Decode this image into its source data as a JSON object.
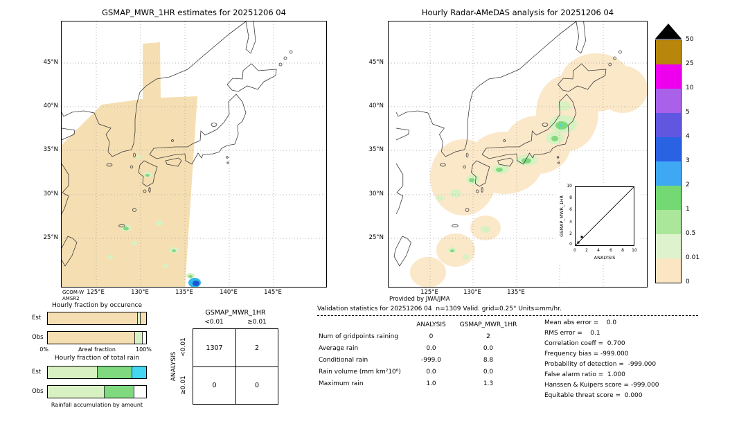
{
  "left_map": {
    "title": "GSMAP_MWR_1HR estimates for 20251206 04",
    "lat_ticks": [
      "45°N",
      "40°N",
      "35°N",
      "30°N",
      "25°N"
    ],
    "lon_ticks": [
      "125°E",
      "130°E",
      "135°E",
      "140°E",
      "145°E"
    ],
    "footnote_line1": "GCOM-W",
    "footnote_line2": "AMSR2"
  },
  "right_map": {
    "title": "Hourly Radar-AMeDAS analysis for 20251206 04",
    "lat_ticks": [
      "45°N",
      "40°N",
      "35°N",
      "30°N",
      "25°N"
    ],
    "lon_ticks": [
      "125°E",
      "130°E",
      "135°E"
    ],
    "footnote": "Provided by JWA/JMA",
    "inset": {
      "ylabel": "GSMAP_MWR_1HR",
      "xlabel": "ANALYSIS",
      "y_ticks": [
        "10",
        "8",
        "6",
        "4",
        "2",
        "0"
      ],
      "x_ticks": [
        "0",
        "2",
        "4",
        "6",
        "8",
        "10"
      ]
    }
  },
  "colorbar": {
    "labels": [
      "50",
      "25",
      "10",
      "5",
      "4",
      "3",
      "2",
      "1",
      "0.5",
      "0.01",
      "0"
    ],
    "colors_top_to_bottom": [
      "#b8860b",
      "#ee00ee",
      "#a861e8",
      "#6156e0",
      "#2a62e4",
      "#3fa8f5",
      "#74d973",
      "#abe69b",
      "#def3cd",
      "#fbe5c2"
    ]
  },
  "fraction_charts": {
    "occurrence": {
      "title": "Hourly fraction by occurence",
      "xlabel": "Areal fraction",
      "x_min_label": "0%",
      "x_max_label": "100%",
      "rows": [
        {
          "label": "Est",
          "segments": [
            [
              "tan",
              0,
              91
            ],
            [
              "palegreen",
              91,
              94
            ],
            [
              "tan",
              94,
              100
            ]
          ]
        },
        {
          "label": "Obs",
          "segments": [
            [
              "tan",
              0,
              88
            ],
            [
              "palegreen",
              88,
              96
            ],
            [
              "white",
              96,
              100
            ]
          ]
        }
      ]
    },
    "total_rain": {
      "title": "Hourly fraction of total rain",
      "caption": "Rainfall accumulation by amount",
      "rows": [
        {
          "label": "Est",
          "segments": [
            [
              "palegreen",
              0,
              50
            ],
            [
              "green",
              50,
              85
            ],
            [
              "cyan",
              85,
              100
            ]
          ]
        },
        {
          "label": "Obs",
          "segments": [
            [
              "palegreen",
              0,
              57
            ],
            [
              "green",
              57,
              87
            ],
            [
              "white",
              87,
              100
            ]
          ]
        }
      ]
    }
  },
  "contingency": {
    "title": "GSMAP_MWR_1HR",
    "col_labels": [
      "<0.01",
      "≥0.01"
    ],
    "row_axis_label": "ANALYSIS",
    "row_labels": [
      "<0.01",
      "≥0.01"
    ],
    "values": [
      [
        "1307",
        "2"
      ],
      [
        "0",
        "0"
      ]
    ]
  },
  "stats": {
    "header": "Validation statistics for 20251206 04  n=1309 Valid. grid=0.25° Units=mm/hr.",
    "col_headers": [
      "ANALYSIS",
      "GSMAP_MWR_1HR"
    ],
    "rows": [
      {
        "label": "Num of gridpoints raining",
        "analysis": "0",
        "gsmap": "2"
      },
      {
        "label": "Average rain",
        "analysis": "0.0",
        "gsmap": "0.0"
      },
      {
        "label": "Conditional rain",
        "analysis": "-999.0",
        "gsmap": "8.8"
      },
      {
        "label": "Rain volume (mm km²10⁶)",
        "analysis": "0.0",
        "gsmap": "0.0"
      },
      {
        "label": "Maximum rain",
        "analysis": "1.0",
        "gsmap": "1.3"
      }
    ],
    "metrics": [
      "Mean abs error =    0.0",
      "RMS error =    0.1",
      "Correlation coeff =  0.700",
      "Frequency bias = -999.000",
      "Probability of detection =  -999.000",
      "False alarm ratio =  1.000",
      "Hanssen & Kuipers score = -999.000",
      "Equitable threat score =  0.000"
    ]
  },
  "palette": {
    "tan": "#f5dfb2",
    "palegreen": "#d8f1c2",
    "green": "#7fd97f",
    "cyan": "#45d6f2",
    "white": "#ffffff",
    "peach": "#fbe8c9",
    "swath_tan": "#f5dfb2",
    "magenta": "#ee00ee",
    "brown": "#b8860b",
    "blue_spot": "#1a55d2",
    "cyan_spot": "#2fb9ea"
  },
  "chart_data": [
    {
      "type": "heatmap",
      "subtype": "precipitation-map",
      "title": "GSMAP_MWR_1HR estimates for 20251206 04",
      "x_ticks": [
        "125°E",
        "130°E",
        "135°E",
        "140°E",
        "145°E"
      ],
      "y_ticks": [
        "45°N",
        "40°N",
        "35°N",
        "30°N",
        "25°N"
      ],
      "units": "mm/hr",
      "source": "GCOM-W AMSR2",
      "description": "Satellite microwave swath (0 mm/hr band) over Korea and East China Sea with scattered 0.01-1 mm/hr cells and one 2-5 mm/hr cell near 136E 22N"
    },
    {
      "type": "heatmap",
      "subtype": "precipitation-map",
      "title": "Hourly Radar-AMeDAS analysis for 20251206 04",
      "x_ticks": [
        "125°E",
        "130°E",
        "135°E"
      ],
      "y_ticks": [
        "45°N",
        "40°N",
        "35°N",
        "30°N",
        "25°N"
      ],
      "units": "mm/hr",
      "description": "Radar coverage blobs (0 mm/hr) along Japan archipelago with scattered 0.01-2 mm/hr rain patches over Kyushu, western and northern Honshu and southern islands"
    },
    {
      "type": "scatter",
      "xlabel": "ANALYSIS",
      "ylabel": "GSMAP_MWR_1HR",
      "xlim": [
        0,
        10
      ],
      "ylim": [
        0,
        10
      ],
      "reference_line": "y=x",
      "points": [
        [
          0,
          0
        ],
        [
          1.0,
          1.3
        ]
      ]
    },
    {
      "type": "colorbar",
      "units": "mm/hr",
      "levels": [
        0,
        0.01,
        0.5,
        1,
        2,
        3,
        4,
        5,
        10,
        25,
        50
      ],
      "colors_bottom_to_top": [
        "#fbe5c2",
        "#def3cd",
        "#abe69b",
        "#74d973",
        "#3fa8f5",
        "#2a62e4",
        "#6156e0",
        "#a861e8",
        "#ee00ee",
        "#b8860b"
      ],
      "overflow_arrow": "black, >50"
    },
    {
      "type": "bar",
      "title": "Hourly fraction by occurence",
      "xlabel": "Areal fraction",
      "orientation": "horizontal-stacked",
      "xlim_percent": [
        0,
        100
      ],
      "categories": [
        "Est",
        "Obs"
      ],
      "series": [
        {
          "name": "Est",
          "segments_percent": {
            "no_rain": 91,
            "rain_0.01_plus": 3,
            "remainder": 6
          }
        },
        {
          "name": "Obs",
          "segments_percent": {
            "no_rain": 88,
            "rain_0.01_plus": 8,
            "empty": 4
          }
        }
      ]
    },
    {
      "type": "bar",
      "title": "Hourly fraction of total rain",
      "xlabel": "Rainfall accumulation by amount",
      "orientation": "horizontal-stacked",
      "categories": [
        "Est",
        "Obs"
      ],
      "series": [
        {
          "name": "Est",
          "segments_percent": {
            "light": 50,
            "moderate": 35,
            "heavy": 15
          }
        },
        {
          "name": "Obs",
          "segments_percent": {
            "light": 57,
            "moderate": 30,
            "empty": 13
          }
        }
      ]
    },
    {
      "type": "table",
      "title": "Contingency table GSMAP_MWR_1HR vs ANALYSIS",
      "columns": [
        "<0.01",
        "≥0.01"
      ],
      "rows": [
        "<0.01",
        "≥0.01"
      ],
      "values": [
        [
          1307,
          2
        ],
        [
          0,
          0
        ]
      ],
      "n_total": 1309
    }
  ]
}
